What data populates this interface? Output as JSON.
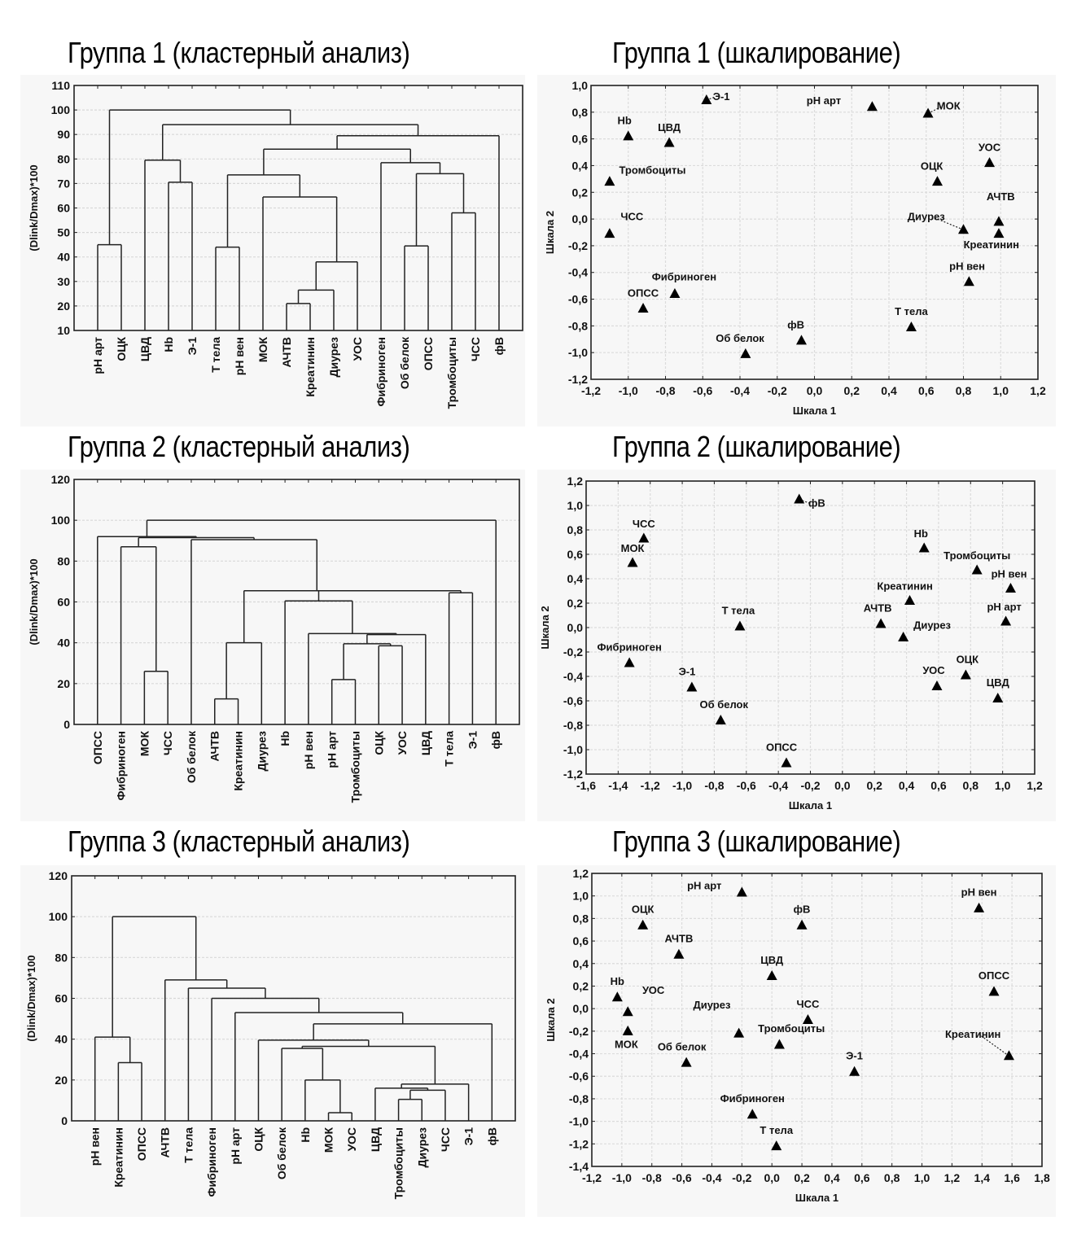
{
  "chart_data": [
    {
      "id": "g1-cluster",
      "type": "dendrogram",
      "title": "Группа 1 (кластерный анализ)",
      "xlabel": "",
      "ylabel": "(Dlink/Dmax)*100",
      "ylim": [
        10,
        110
      ],
      "yticks": [
        10,
        20,
        30,
        40,
        50,
        60,
        70,
        80,
        90,
        100,
        110
      ],
      "grid": "horizontal",
      "leaves": [
        "pH арт",
        "ОЦК",
        "ЦВД",
        "Hb",
        "Э-1",
        "Т тела",
        "pH вен",
        "МОК",
        "АЧТВ",
        "Креатинин",
        "Диурез",
        "УОС",
        "Фибриноген",
        "Об белок",
        "ОПСС",
        "Тромбоциты",
        "ЧСС",
        "фВ"
      ],
      "merges": [
        {
          "a": "pH арт",
          "b": "ОЦК",
          "height": 45,
          "id": "m1"
        },
        {
          "a": "Hb",
          "b": "Э-1",
          "height": 70.5,
          "id": "m2"
        },
        {
          "a": "ЦВД",
          "b": "m2",
          "height": 79.5,
          "id": "m3"
        },
        {
          "a": "Т тела",
          "b": "pH вен",
          "height": 44,
          "id": "m4"
        },
        {
          "a": "АЧТВ",
          "b": "Креатинин",
          "height": 21,
          "id": "m5"
        },
        {
          "a": "m5",
          "b": "Диурез",
          "height": 26.5,
          "id": "m6"
        },
        {
          "a": "m6",
          "b": "УОС",
          "height": 38,
          "id": "m7"
        },
        {
          "a": "МОК",
          "b": "m7",
          "height": 64.5,
          "id": "m8"
        },
        {
          "a": "m4",
          "b": "m8",
          "height": 73.5,
          "id": "m9"
        },
        {
          "a": "Об белок",
          "b": "ОПСС",
          "height": 44.5,
          "id": "m10"
        },
        {
          "a": "Тромбоциты",
          "b": "ЧСС",
          "height": 58,
          "id": "m11"
        },
        {
          "a": "m10",
          "b": "m11",
          "height": 74,
          "id": "m12"
        },
        {
          "a": "Фибриноген",
          "b": "m12",
          "height": 78.5,
          "id": "m13"
        },
        {
          "a": "m9",
          "b": "m13",
          "height": 84,
          "id": "m14"
        },
        {
          "a": "m14",
          "b": "фВ",
          "height": 89.5,
          "id": "m15"
        },
        {
          "a": "m3",
          "b": "m15",
          "height": 94,
          "id": "m16"
        },
        {
          "a": "m1",
          "b": "m16",
          "height": 100,
          "id": "m17"
        }
      ]
    },
    {
      "id": "g1-scaling",
      "type": "scatter",
      "title": "Группа 1 (шкалирование)",
      "xlabel": "Шкала 1",
      "ylabel": "Шкала 2",
      "xlim": [
        -1.2,
        1.2
      ],
      "ylim": [
        -1.2,
        1.0
      ],
      "xticks": [
        "-1,2",
        "-1,0",
        "-0,8",
        "-0,6",
        "-0,4",
        "-0,2",
        "0,0",
        "0,2",
        "0,4",
        "0,6",
        "0,8",
        "1,0",
        "1,2"
      ],
      "yticks": [
        "-1,2",
        "-1,0",
        "-0,8",
        "-0,6",
        "-0,4",
        "-0,2",
        "0,0",
        "0,2",
        "0,4",
        "0,6",
        "0,8",
        "1,0"
      ],
      "grid": true,
      "marker": "triangle",
      "points": [
        {
          "label": "Э-1",
          "x": -0.58,
          "y": 0.89,
          "lx": -0.5,
          "ly": 0.89,
          "leader": true
        },
        {
          "label": "pH арт",
          "x": 0.31,
          "y": 0.84,
          "lx": 0.05,
          "ly": 0.86
        },
        {
          "label": "МОК",
          "x": 0.61,
          "y": 0.79,
          "lx": 0.72,
          "ly": 0.82,
          "leader": true
        },
        {
          "label": "Hb",
          "x": -1.0,
          "y": 0.62,
          "lx": -1.02,
          "ly": 0.71
        },
        {
          "label": "ЦВД",
          "x": -0.78,
          "y": 0.57,
          "lx": -0.78,
          "ly": 0.66
        },
        {
          "label": "Тромбоциты",
          "x": -1.1,
          "y": 0.28,
          "lx": -0.87,
          "ly": 0.34
        },
        {
          "label": "УОС",
          "x": 0.94,
          "y": 0.42,
          "lx": 0.94,
          "ly": 0.51
        },
        {
          "label": "ОЦК",
          "x": 0.66,
          "y": 0.28,
          "lx": 0.63,
          "ly": 0.37
        },
        {
          "label": "АЧТВ",
          "x": 0.99,
          "y": -0.02,
          "lx": 1.0,
          "ly": 0.14
        },
        {
          "label": "ЧСС",
          "x": -1.1,
          "y": -0.11,
          "lx": -0.98,
          "ly": -0.01
        },
        {
          "label": "Диурез",
          "x": 0.8,
          "y": -0.08,
          "lx": 0.6,
          "ly": -0.01,
          "leader": true
        },
        {
          "label": "Креатинин",
          "x": 0.99,
          "y": -0.11,
          "lx": 0.95,
          "ly": -0.22
        },
        {
          "label": "pH вен",
          "x": 0.83,
          "y": -0.47,
          "lx": 0.82,
          "ly": -0.38
        },
        {
          "label": "Фибриноген",
          "x": -0.75,
          "y": -0.56,
          "lx": -0.7,
          "ly": -0.46
        },
        {
          "label": "ОПСС",
          "x": -0.92,
          "y": -0.67,
          "lx": -0.92,
          "ly": -0.58
        },
        {
          "label": "Т тела",
          "x": 0.52,
          "y": -0.81,
          "lx": 0.52,
          "ly": -0.72
        },
        {
          "label": "фВ",
          "x": -0.07,
          "y": -0.91,
          "lx": -0.1,
          "ly": -0.82
        },
        {
          "label": "Об белок",
          "x": -0.37,
          "y": -1.01,
          "lx": -0.4,
          "ly": -0.92
        }
      ]
    },
    {
      "id": "g2-cluster",
      "type": "dendrogram",
      "title": "Группа 2 (кластерный анализ)",
      "xlabel": "",
      "ylabel": "(Dlink/Dmax)*100",
      "ylim": [
        0,
        120
      ],
      "yticks": [
        0,
        20,
        40,
        60,
        80,
        100,
        120
      ],
      "grid": "horizontal",
      "leaves": [
        "ОПСС",
        "Фибриноген",
        "МОК",
        "ЧСС",
        "Об белок",
        "АЧТВ",
        "Креатинин",
        "Диурез",
        "Hb",
        "pH вен",
        "pH арт",
        "Тромбоциты",
        "ОЦК",
        "УОС",
        "ЦВД",
        "Т тела",
        "Э-1",
        "фВ"
      ],
      "merges": [
        {
          "a": "МОК",
          "b": "ЧСС",
          "height": 26,
          "id": "m1"
        },
        {
          "a": "Фибриноген",
          "b": "m1",
          "height": 87,
          "id": "m2"
        },
        {
          "a": "АЧТВ",
          "b": "Креатинин",
          "height": 12.5,
          "id": "m3"
        },
        {
          "a": "m3",
          "b": "Диурез",
          "height": 40,
          "id": "m4"
        },
        {
          "a": "pH арт",
          "b": "Тромбоциты",
          "height": 22,
          "id": "m5"
        },
        {
          "a": "ОЦК",
          "b": "УОС",
          "height": 38.5,
          "id": "m6"
        },
        {
          "a": "m5",
          "b": "m6",
          "height": 39.5,
          "id": "m7"
        },
        {
          "a": "m7",
          "b": "ЦВД",
          "height": 44,
          "id": "m8"
        },
        {
          "a": "pH вен",
          "b": "m8",
          "height": 44.5,
          "id": "m9"
        },
        {
          "a": "Hb",
          "b": "m9",
          "height": 60.5,
          "id": "m10"
        },
        {
          "a": "Т тела",
          "b": "Э-1",
          "height": 64.5,
          "id": "m11"
        },
        {
          "a": "m10",
          "b": "m11",
          "height": 65.5,
          "id": "m12"
        },
        {
          "a": "m4",
          "b": "m12",
          "height": 65.5,
          "id": "m13"
        },
        {
          "a": "Об белок",
          "b": "m13",
          "height": 90.5,
          "id": "m14"
        },
        {
          "a": "m2",
          "b": "m14",
          "height": 91.5,
          "id": "m15"
        },
        {
          "a": "ОПСС",
          "b": "m15",
          "height": 92,
          "id": "m16"
        },
        {
          "a": "m16",
          "b": "фВ",
          "height": 100,
          "id": "m17"
        }
      ]
    },
    {
      "id": "g2-scaling",
      "type": "scatter",
      "title": "Группа 2 (шкалирование)",
      "xlabel": "Шкала 1",
      "ylabel": "Шкала 2",
      "xlim": [
        -1.6,
        1.2
      ],
      "ylim": [
        -1.2,
        1.2
      ],
      "xticks": [
        "-1,6",
        "-1,4",
        "-1,2",
        "-1,0",
        "-0,8",
        "-0,6",
        "-0,4",
        "-0,2",
        "0,0",
        "0,2",
        "0,4",
        "0,6",
        "0,8",
        "1,0",
        "1,2"
      ],
      "yticks": [
        "-1,2",
        "-1,0",
        "-0,8",
        "-0,6",
        "-0,4",
        "-0,2",
        "0,0",
        "0,2",
        "0,4",
        "0,6",
        "0,8",
        "1,0",
        "1,2"
      ],
      "grid": true,
      "marker": "triangle",
      "points": [
        {
          "label": "фВ",
          "x": -0.27,
          "y": 1.05,
          "lx": -0.16,
          "ly": 0.99,
          "leader": true
        },
        {
          "label": "ЧСС",
          "x": -1.24,
          "y": 0.73,
          "lx": -1.24,
          "ly": 0.82
        },
        {
          "label": "МОК",
          "x": -1.31,
          "y": 0.53,
          "lx": -1.31,
          "ly": 0.62
        },
        {
          "label": "Hb",
          "x": 0.51,
          "y": 0.65,
          "lx": 0.49,
          "ly": 0.74
        },
        {
          "label": "Тромбоциты",
          "x": 0.84,
          "y": 0.47,
          "lx": 0.84,
          "ly": 0.56
        },
        {
          "label": "pH вен",
          "x": 1.05,
          "y": 0.32,
          "lx": 1.04,
          "ly": 0.41
        },
        {
          "label": "Креатинин",
          "x": 0.42,
          "y": 0.22,
          "lx": 0.39,
          "ly": 0.31
        },
        {
          "label": "АЧТВ",
          "x": 0.24,
          "y": 0.03,
          "lx": 0.22,
          "ly": 0.13
        },
        {
          "label": "pH арт",
          "x": 1.02,
          "y": 0.05,
          "lx": 1.01,
          "ly": 0.14
        },
        {
          "label": "Т тела",
          "x": -0.64,
          "y": 0.01,
          "lx": -0.65,
          "ly": 0.11
        },
        {
          "label": "Диурез",
          "x": 0.38,
          "y": -0.08,
          "lx": 0.56,
          "ly": -0.01
        },
        {
          "label": "Фибриноген",
          "x": -1.33,
          "y": -0.29,
          "lx": -1.33,
          "ly": -0.19
        },
        {
          "label": "Э-1",
          "x": -0.94,
          "y": -0.49,
          "lx": -0.97,
          "ly": -0.39
        },
        {
          "label": "УОС",
          "x": 0.59,
          "y": -0.48,
          "lx": 0.57,
          "ly": -0.38
        },
        {
          "label": "ОЦК",
          "x": 0.77,
          "y": -0.39,
          "lx": 0.78,
          "ly": -0.29
        },
        {
          "label": "ЦВД",
          "x": 0.97,
          "y": -0.58,
          "lx": 0.97,
          "ly": -0.48
        },
        {
          "label": "Об белок",
          "x": -0.76,
          "y": -0.76,
          "lx": -0.74,
          "ly": -0.66
        },
        {
          "label": "ОПСС",
          "x": -0.35,
          "y": -1.11,
          "lx": -0.38,
          "ly": -1.01
        }
      ]
    },
    {
      "id": "g3-cluster",
      "type": "dendrogram",
      "title": "Группа 3 (кластерный анализ)",
      "xlabel": "",
      "ylabel": "(Dlink/Dmax)*100",
      "ylim": [
        0,
        120
      ],
      "yticks": [
        0,
        20,
        40,
        60,
        80,
        100,
        120
      ],
      "grid": "horizontal",
      "leaves": [
        "pH вен",
        "Креатинин",
        "ОПСС",
        "АЧТВ",
        "Т тела",
        "Фибриноген",
        "pH арт",
        "ОЦК",
        "Об белок",
        "Hb",
        "МОК",
        "УОС",
        "ЦВД",
        "Тромбоциты",
        "Диурез",
        "ЧСС",
        "Э-1",
        "фВ"
      ],
      "merges": [
        {
          "a": "Креатинин",
          "b": "ОПСС",
          "height": 28.5,
          "id": "m1"
        },
        {
          "a": "pH вен",
          "b": "m1",
          "height": 41,
          "id": "m2"
        },
        {
          "a": "МОК",
          "b": "УОС",
          "height": 4,
          "id": "m3"
        },
        {
          "a": "Hb",
          "b": "m3",
          "height": 20,
          "id": "m4"
        },
        {
          "a": "Об белок",
          "b": "m4",
          "height": 35.5,
          "id": "m5"
        },
        {
          "a": "Тромбоциты",
          "b": "Диурез",
          "height": 10.5,
          "id": "m6"
        },
        {
          "a": "m6",
          "b": "ЧСС",
          "height": 15,
          "id": "m7"
        },
        {
          "a": "ЦВД",
          "b": "m7",
          "height": 16,
          "id": "m8"
        },
        {
          "a": "m8",
          "b": "Э-1",
          "height": 18,
          "id": "m9"
        },
        {
          "a": "m5",
          "b": "m9",
          "height": 36.5,
          "id": "m10"
        },
        {
          "a": "ОЦК",
          "b": "m10",
          "height": 39.5,
          "id": "m11"
        },
        {
          "a": "m11",
          "b": "фВ",
          "height": 47.5,
          "id": "m12"
        },
        {
          "a": "pH арт",
          "b": "m12",
          "height": 53,
          "id": "m13"
        },
        {
          "a": "Фибриноген",
          "b": "m13",
          "height": 60,
          "id": "m14"
        },
        {
          "a": "Т тела",
          "b": "m14",
          "height": 65,
          "id": "m15"
        },
        {
          "a": "АЧТВ",
          "b": "m15",
          "height": 69,
          "id": "m16"
        },
        {
          "a": "m2",
          "b": "m16",
          "height": 100,
          "id": "m17"
        }
      ]
    },
    {
      "id": "g3-scaling",
      "type": "scatter",
      "title": "Группа 3 (шкалирование)",
      "xlabel": "Шкала 1",
      "ylabel": "Шкала 2",
      "xlim": [
        -1.2,
        1.8
      ],
      "ylim": [
        -1.4,
        1.2
      ],
      "xticks": [
        "-1,2",
        "-1,0",
        "-0,8",
        "-0,6",
        "-0,4",
        "-0,2",
        "0,0",
        "0,2",
        "0,4",
        "0,6",
        "0,8",
        "1,0",
        "1,2",
        "1,4",
        "1,6",
        "1,8"
      ],
      "yticks": [
        "-1,4",
        "-1,2",
        "-1,0",
        "-0,8",
        "-0,6",
        "-0,4",
        "-0,2",
        "0,0",
        "0,2",
        "0,4",
        "0,6",
        "0,8",
        "1,0",
        "1,2"
      ],
      "grid": true,
      "marker": "triangle",
      "points": [
        {
          "label": "pH арт",
          "x": -0.2,
          "y": 1.03,
          "lx": -0.45,
          "ly": 1.06
        },
        {
          "label": "pH вен",
          "x": 1.38,
          "y": 0.89,
          "lx": 1.38,
          "ly": 1.0
        },
        {
          "label": "ОЦК",
          "x": -0.86,
          "y": 0.74,
          "lx": -0.86,
          "ly": 0.85
        },
        {
          "label": "фВ",
          "x": 0.2,
          "y": 0.74,
          "lx": 0.2,
          "ly": 0.85
        },
        {
          "label": "АЧТВ",
          "x": -0.62,
          "y": 0.48,
          "lx": -0.62,
          "ly": 0.59
        },
        {
          "label": "ЦВД",
          "x": 0.0,
          "y": 0.29,
          "lx": 0.0,
          "ly": 0.4
        },
        {
          "label": "ОПСС",
          "x": 1.48,
          "y": 0.15,
          "lx": 1.48,
          "ly": 0.26
        },
        {
          "label": "Hb",
          "x": -1.03,
          "y": 0.1,
          "lx": -1.03,
          "ly": 0.21
        },
        {
          "label": "УОС",
          "x": -0.96,
          "y": -0.03,
          "lx": -0.79,
          "ly": 0.13
        },
        {
          "label": "Диурез",
          "x": -0.22,
          "y": -0.22,
          "lx": -0.4,
          "ly": 0.0
        },
        {
          "label": "ЧСС",
          "x": 0.24,
          "y": -0.1,
          "lx": 0.24,
          "ly": 0.01
        },
        {
          "label": "МОК",
          "x": -0.96,
          "y": -0.2,
          "lx": -0.97,
          "ly": -0.35
        },
        {
          "label": "Тромбоциты",
          "x": 0.05,
          "y": -0.32,
          "lx": 0.13,
          "ly": -0.21
        },
        {
          "label": "Креатинин",
          "x": 1.58,
          "y": -0.42,
          "lx": 1.34,
          "ly": -0.26,
          "leader": true
        },
        {
          "label": "Об белок",
          "x": -0.57,
          "y": -0.48,
          "lx": -0.6,
          "ly": -0.37
        },
        {
          "label": "Э-1",
          "x": 0.55,
          "y": -0.56,
          "lx": 0.55,
          "ly": -0.45
        },
        {
          "label": "Фибриноген",
          "x": -0.13,
          "y": -0.94,
          "lx": -0.13,
          "ly": -0.83
        },
        {
          "label": "Т тела",
          "x": 0.03,
          "y": -1.22,
          "lx": 0.03,
          "ly": -1.11
        }
      ]
    }
  ]
}
